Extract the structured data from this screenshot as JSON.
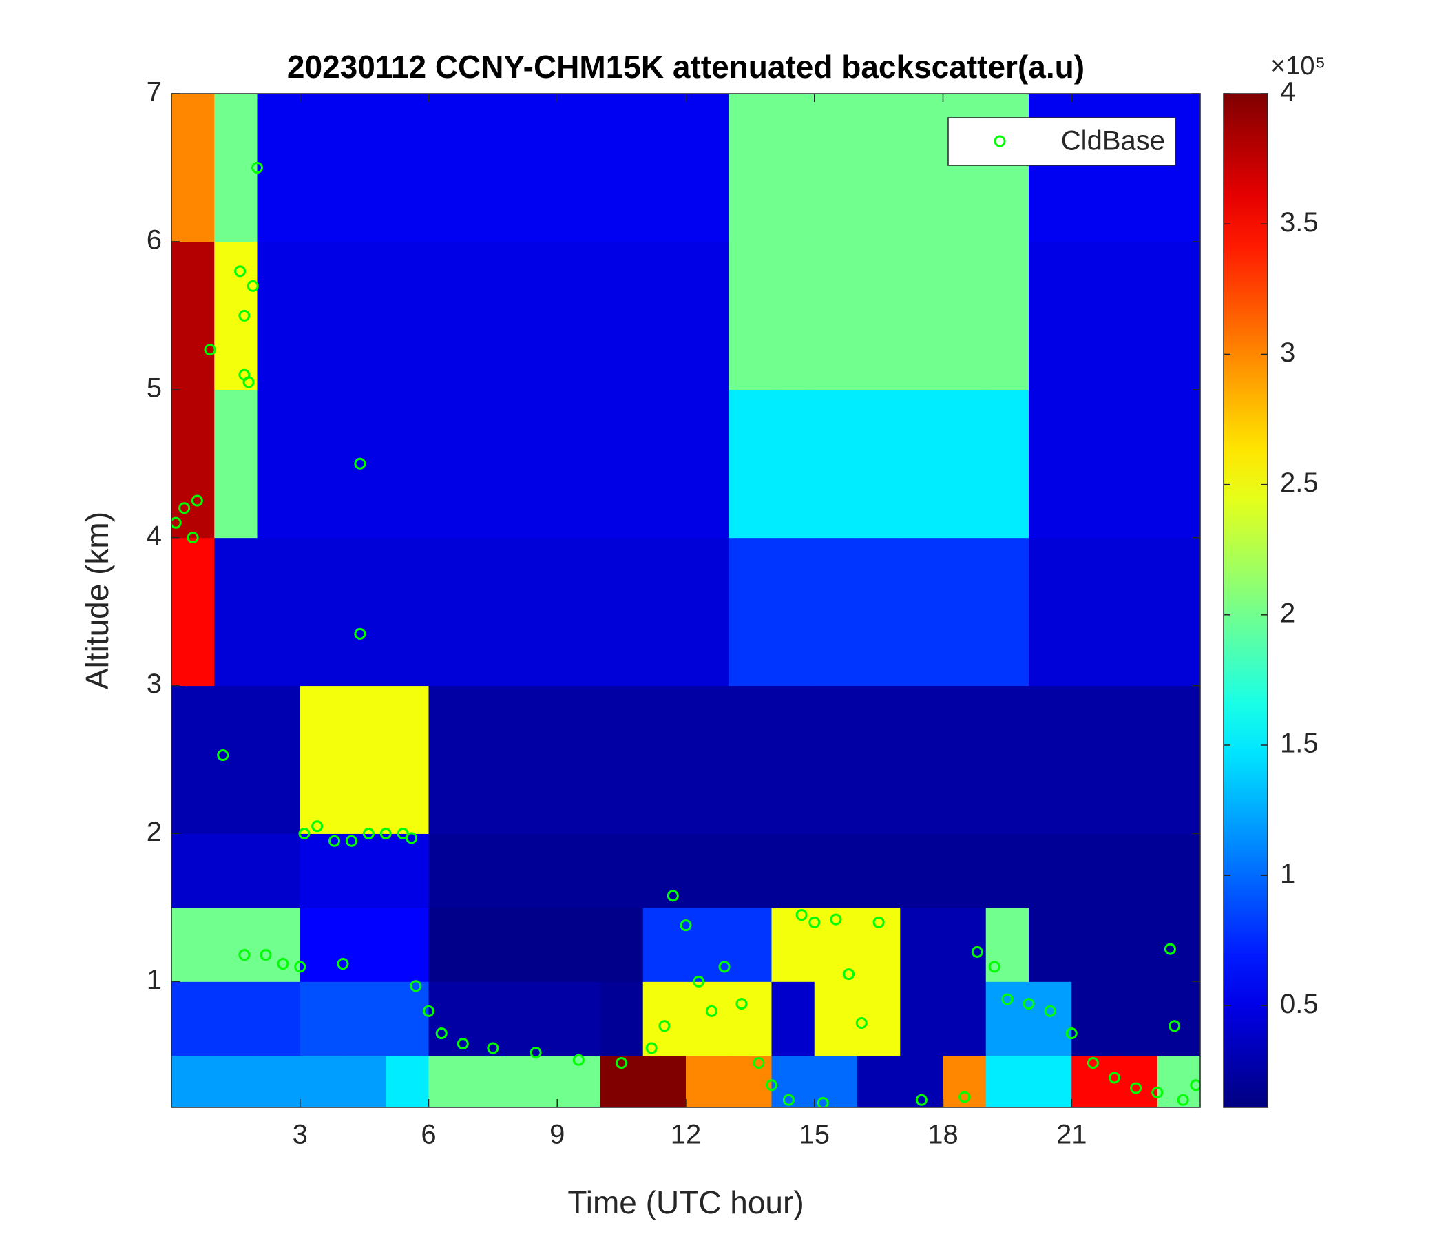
{
  "chart_data": {
    "type": "heatmap",
    "title": "20230112 CCNY-CHM15K attenuated backscatter(a.u)",
    "xlabel": "Time (UTC hour)",
    "ylabel": "Altitude (km)",
    "xlim": [
      0,
      24
    ],
    "xticks": [
      3,
      6,
      9,
      12,
      15,
      18,
      21
    ],
    "ylim": [
      0.15,
      7
    ],
    "yticks": [
      1,
      2,
      3,
      4,
      5,
      6,
      7
    ],
    "colormap": "jet",
    "clim": [
      11000,
      400000
    ],
    "colorbar_exponent": "×10⁵",
    "colorbar_ticks": [
      {
        "value": 50000,
        "label": "0.5"
      },
      {
        "value": 100000,
        "label": "1"
      },
      {
        "value": 150000,
        "label": "1.5"
      },
      {
        "value": 200000,
        "label": "2"
      },
      {
        "value": 250000,
        "label": "2.5"
      },
      {
        "value": 300000,
        "label": "3"
      },
      {
        "value": 350000,
        "label": "3.5"
      },
      {
        "value": 400000,
        "label": "4"
      }
    ],
    "x_edges": [
      0,
      1,
      2,
      3,
      4,
      5,
      6,
      7,
      8,
      9,
      10,
      11,
      12,
      13,
      14,
      15,
      16,
      17,
      18,
      19,
      20,
      21,
      22,
      23,
      24
    ],
    "y_edges": [
      0.15,
      0.5,
      1,
      1.5,
      2,
      3,
      4,
      5,
      6,
      7
    ],
    "z": [
      [
        120000,
        120000,
        120000,
        120000,
        120000,
        150000,
        200000,
        200000,
        200000,
        200000,
        400000,
        400000,
        300000,
        300000,
        100000,
        100000,
        30000,
        30000,
        300000,
        150000,
        150000,
        350000,
        350000,
        200000
      ],
      [
        80000,
        80000,
        80000,
        90000,
        90000,
        90000,
        25000,
        25000,
        25000,
        25000,
        20000,
        250000,
        250000,
        250000,
        40000,
        250000,
        250000,
        30000,
        30000,
        120000,
        120000,
        20000,
        20000,
        20000
      ],
      [
        200000,
        200000,
        200000,
        60000,
        60000,
        60000,
        15000,
        15000,
        15000,
        15000,
        15000,
        80000,
        80000,
        80000,
        250000,
        250000,
        250000,
        30000,
        30000,
        200000,
        20000,
        20000,
        20000,
        20000
      ],
      [
        40000,
        40000,
        40000,
        50000,
        50000,
        50000,
        20000,
        20000,
        20000,
        20000,
        20000,
        20000,
        20000,
        20000,
        20000,
        20000,
        20000,
        20000,
        20000,
        20000,
        20000,
        20000,
        20000,
        20000
      ],
      [
        30000,
        30000,
        30000,
        250000,
        250000,
        250000,
        25000,
        25000,
        25000,
        25000,
        25000,
        25000,
        25000,
        25000,
        25000,
        25000,
        25000,
        25000,
        25000,
        25000,
        25000,
        25000,
        25000,
        25000
      ],
      [
        350000,
        45000,
        45000,
        45000,
        45000,
        45000,
        45000,
        45000,
        45000,
        45000,
        45000,
        45000,
        45000,
        80000,
        80000,
        80000,
        80000,
        80000,
        80000,
        80000,
        45000,
        45000,
        45000,
        45000
      ],
      [
        380000,
        200000,
        50000,
        50000,
        50000,
        50000,
        50000,
        50000,
        50000,
        50000,
        50000,
        50000,
        50000,
        150000,
        150000,
        150000,
        150000,
        150000,
        150000,
        150000,
        50000,
        50000,
        50000,
        50000
      ],
      [
        380000,
        250000,
        50000,
        50000,
        50000,
        50000,
        50000,
        50000,
        50000,
        50000,
        50000,
        50000,
        50000,
        200000,
        200000,
        200000,
        200000,
        200000,
        200000,
        200000,
        50000,
        50000,
        50000,
        50000
      ],
      [
        300000,
        200000,
        55000,
        55000,
        55000,
        55000,
        55000,
        55000,
        55000,
        55000,
        55000,
        55000,
        55000,
        200000,
        200000,
        200000,
        200000,
        200000,
        200000,
        200000,
        55000,
        55000,
        55000,
        55000
      ]
    ],
    "series": [
      {
        "name": "CldBase",
        "type": "scatter",
        "color": "#00ff00",
        "x": [
          0.1,
          0.3,
          0.5,
          0.6,
          0.9,
          1.6,
          1.7,
          1.7,
          1.8,
          1.9,
          2.0,
          1.2,
          1.7,
          2.2,
          2.6,
          3.0,
          3.1,
          3.4,
          3.8,
          4.0,
          4.2,
          4.4,
          4.4,
          4.6,
          5.0,
          5.4,
          5.6,
          5.7,
          6.0,
          6.3,
          6.8,
          7.5,
          8.5,
          9.5,
          10.5,
          11.2,
          11.5,
          11.7,
          12.0,
          12.3,
          12.6,
          12.9,
          13.3,
          13.7,
          14.0,
          14.4,
          14.7,
          15.0,
          15.2,
          15.5,
          15.8,
          16.1,
          16.5,
          17.5,
          18.5,
          18.8,
          19.2,
          19.5,
          20.0,
          20.5,
          21.0,
          21.5,
          22.0,
          22.5,
          23.0,
          23.3,
          23.4,
          23.6,
          23.9
        ],
        "values": [
          4.1,
          4.2,
          4.0,
          4.25,
          5.27,
          5.8,
          5.5,
          5.1,
          5.05,
          5.7,
          6.5,
          2.53,
          1.18,
          1.18,
          1.12,
          1.1,
          2.0,
          2.05,
          1.95,
          1.12,
          1.95,
          3.35,
          4.5,
          2.0,
          2.0,
          2.0,
          1.97,
          0.97,
          0.8,
          0.65,
          0.58,
          0.55,
          0.52,
          0.47,
          0.45,
          0.55,
          0.7,
          1.58,
          1.38,
          1.0,
          0.8,
          1.1,
          0.85,
          0.45,
          0.3,
          0.2,
          1.45,
          1.4,
          0.18,
          1.42,
          1.05,
          0.72,
          1.4,
          0.2,
          0.22,
          1.2,
          1.1,
          0.88,
          0.85,
          0.8,
          0.65,
          0.45,
          0.35,
          0.28,
          0.25,
          1.22,
          0.7,
          0.2,
          0.3
        ]
      }
    ],
    "legend": "northeast"
  }
}
